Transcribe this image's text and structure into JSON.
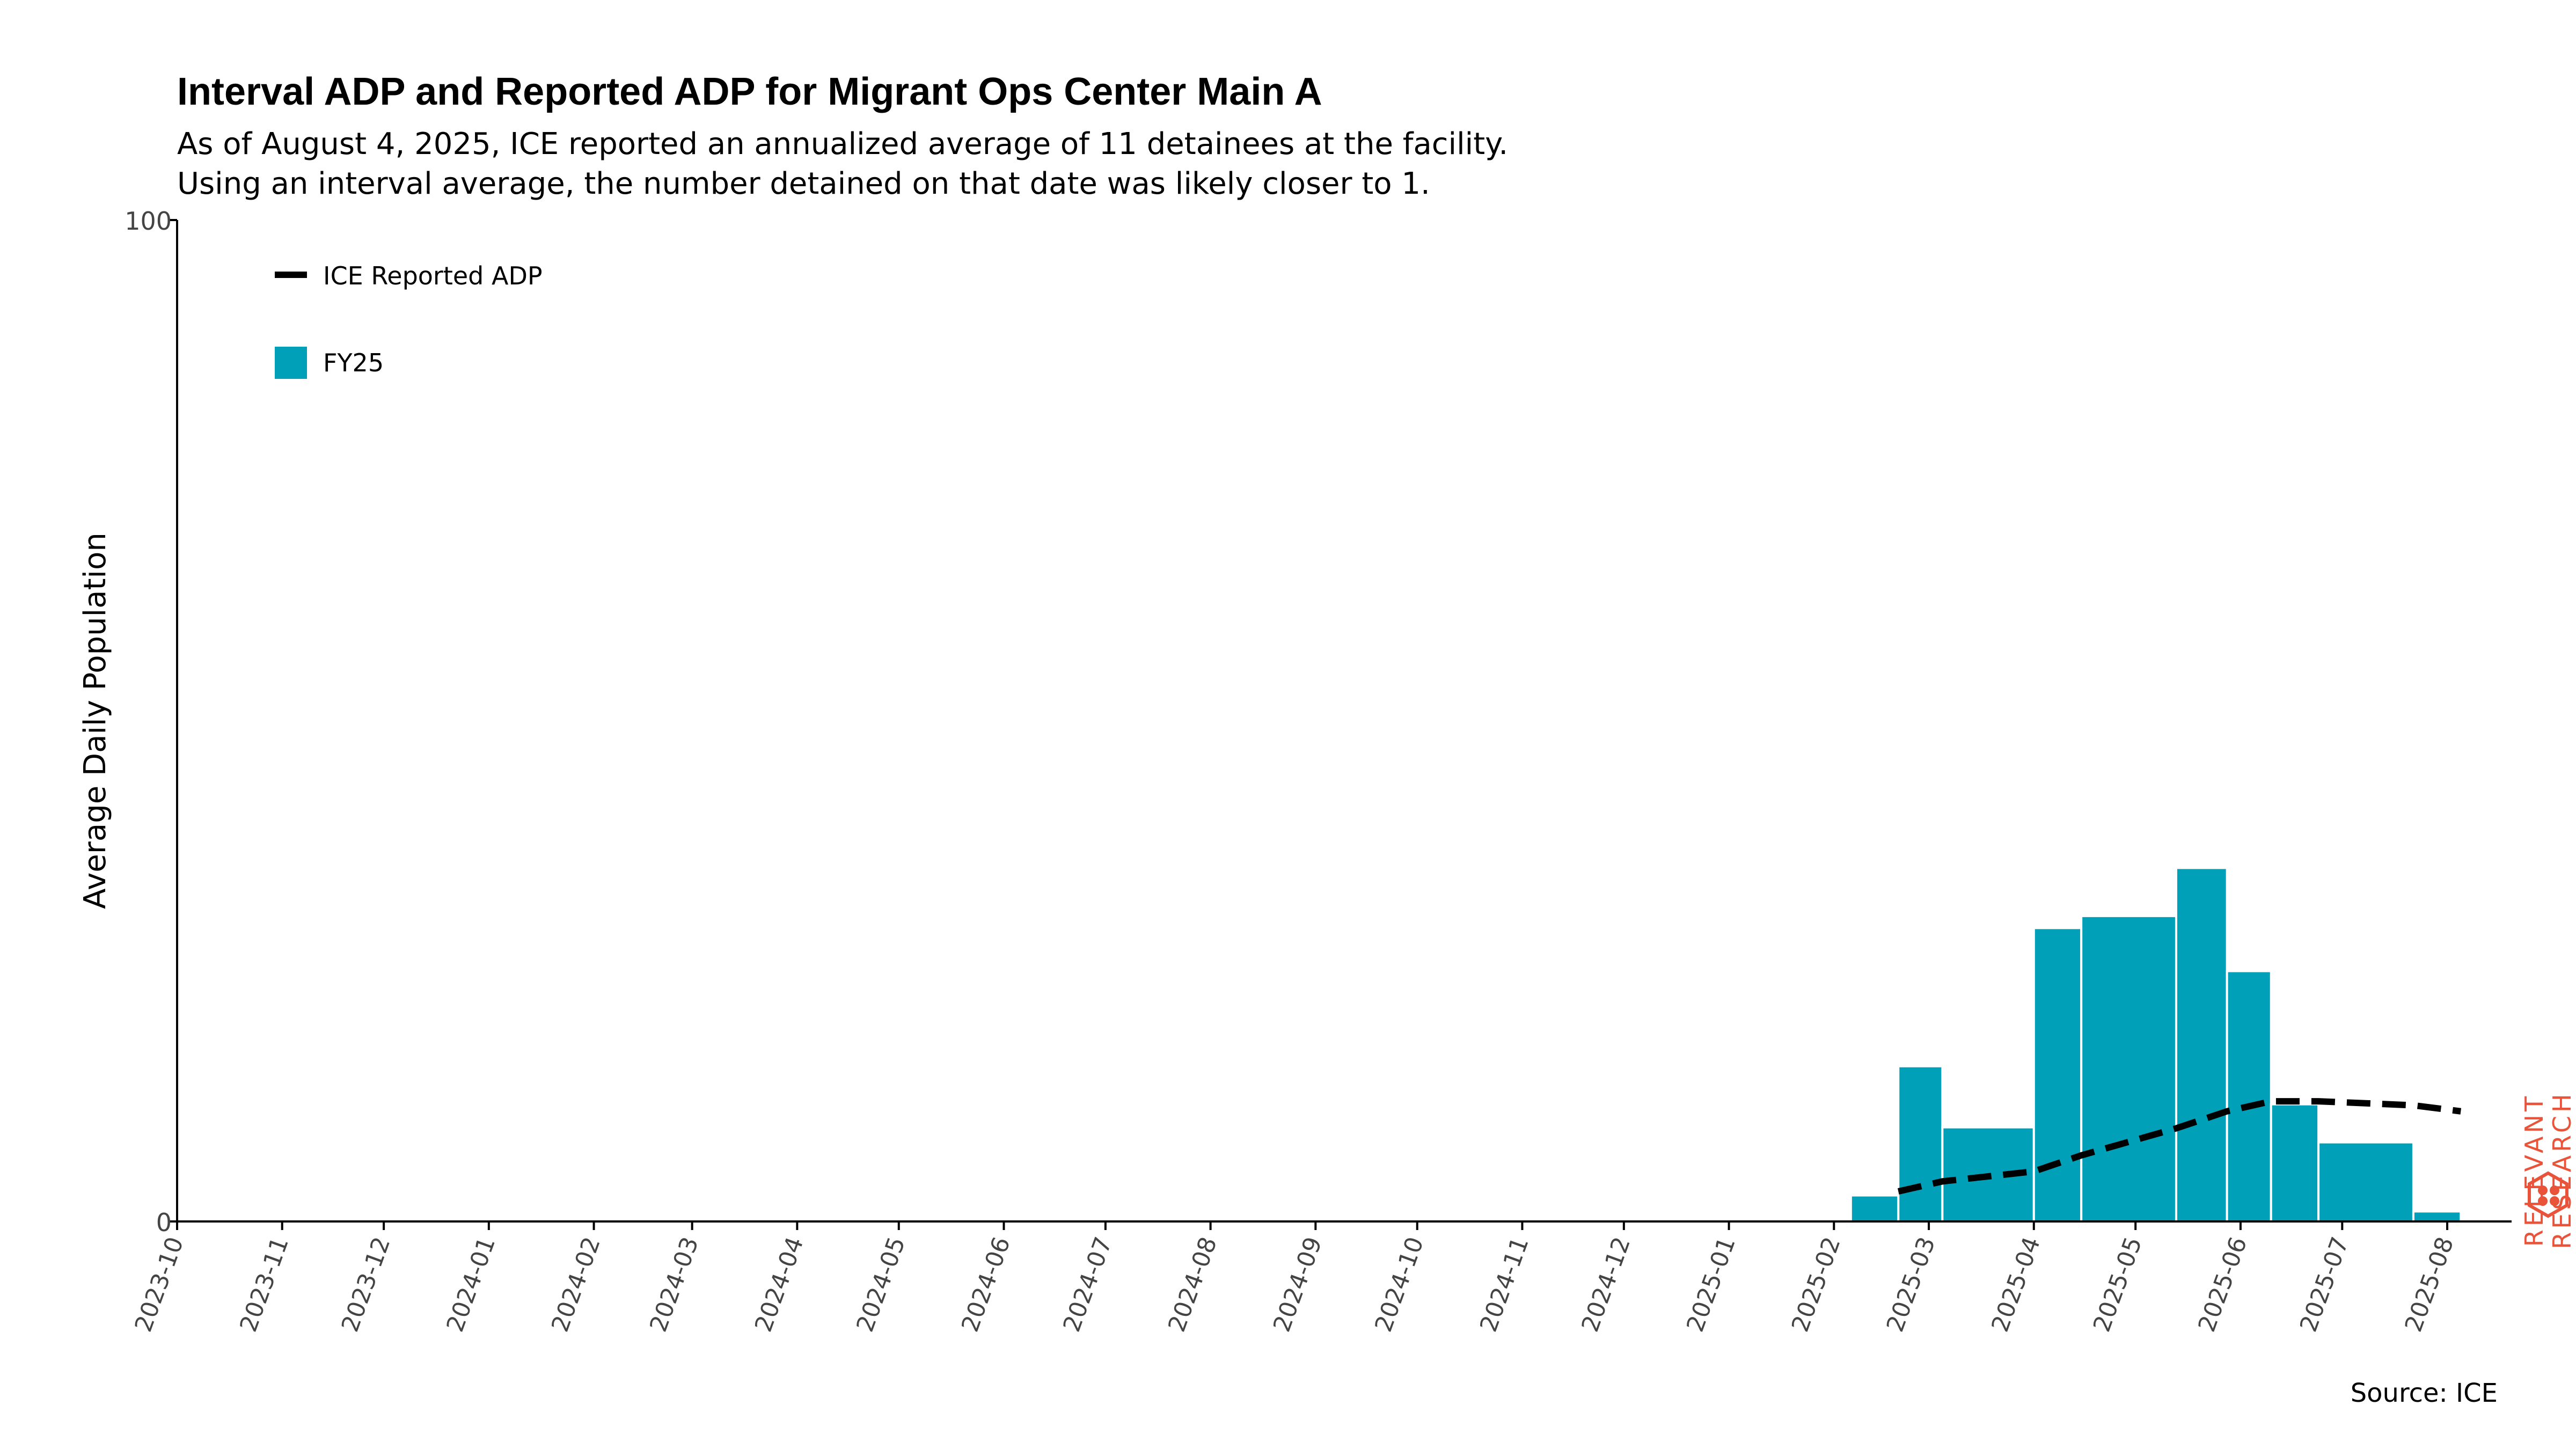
{
  "header": {
    "title": "Interval ADP and Reported ADP for Migrant Ops Center Main A",
    "subtitle_line1": "As of August 4, 2025, ICE reported an annualized average of 11 detainees at the facility.",
    "subtitle_line2": "Using an interval average, the number detained on that date was likely closer to 1."
  },
  "footer": {
    "source": "Source: ICE"
  },
  "brand": {
    "line1": "RELEVANT",
    "line2": "RESEARCH",
    "color": "#e8533a",
    "icon": "hexagon-logo-icon"
  },
  "chart_data": {
    "type": "bar",
    "ylabel": "Average Daily Population",
    "ylim": [
      0,
      100
    ],
    "yticks": [
      "0",
      "100"
    ],
    "xlim": [
      "2023-10-01",
      "2025-08-20"
    ],
    "xticks": [
      "2023-10",
      "2023-11",
      "2023-12",
      "2024-01",
      "2024-02",
      "2024-03",
      "2024-04",
      "2024-05",
      "2024-06",
      "2024-07",
      "2024-08",
      "2024-09",
      "2024-10",
      "2024-11",
      "2024-12",
      "2025-01",
      "2025-02",
      "2025-03",
      "2025-04",
      "2025-05",
      "2025-06",
      "2025-07",
      "2025-08"
    ],
    "legend": {
      "position": "top-left",
      "items": [
        {
          "label": "ICE Reported ADP",
          "kind": "dashed-line",
          "color": "#000000"
        },
        {
          "label": "FY25",
          "kind": "bar",
          "color": "#00a0b8"
        }
      ]
    },
    "bars": {
      "name": "FY25",
      "color": "#00a0b8",
      "intervals": [
        {
          "start": "2025-02-06",
          "end": "2025-02-20",
          "value": 2.6
        },
        {
          "start": "2025-02-20",
          "end": "2025-03-05",
          "value": 15.5
        },
        {
          "start": "2025-03-05",
          "end": "2025-04-01",
          "value": 9.4
        },
        {
          "start": "2025-04-01",
          "end": "2025-04-15",
          "value": 29.3
        },
        {
          "start": "2025-04-15",
          "end": "2025-05-13",
          "value": 30.5
        },
        {
          "start": "2025-05-13",
          "end": "2025-05-28",
          "value": 35.3
        },
        {
          "start": "2025-05-28",
          "end": "2025-06-10",
          "value": 25.0
        },
        {
          "start": "2025-06-10",
          "end": "2025-06-24",
          "value": 11.7
        },
        {
          "start": "2025-06-24",
          "end": "2025-07-22",
          "value": 7.9
        },
        {
          "start": "2025-07-22",
          "end": "2025-08-05",
          "value": 1.0
        }
      ]
    },
    "line": {
      "name": "ICE Reported ADP",
      "color": "#000000",
      "style": "dashed",
      "points": [
        {
          "x": "2025-02-20",
          "y": 3.0
        },
        {
          "x": "2025-03-05",
          "y": 4.0
        },
        {
          "x": "2025-04-01",
          "y": 5.0
        },
        {
          "x": "2025-04-15",
          "y": 6.6
        },
        {
          "x": "2025-05-13",
          "y": 9.3
        },
        {
          "x": "2025-05-28",
          "y": 11.0
        },
        {
          "x": "2025-06-10",
          "y": 12.0
        },
        {
          "x": "2025-06-24",
          "y": 12.0
        },
        {
          "x": "2025-07-22",
          "y": 11.6
        },
        {
          "x": "2025-08-05",
          "y": 11.0
        }
      ]
    }
  }
}
